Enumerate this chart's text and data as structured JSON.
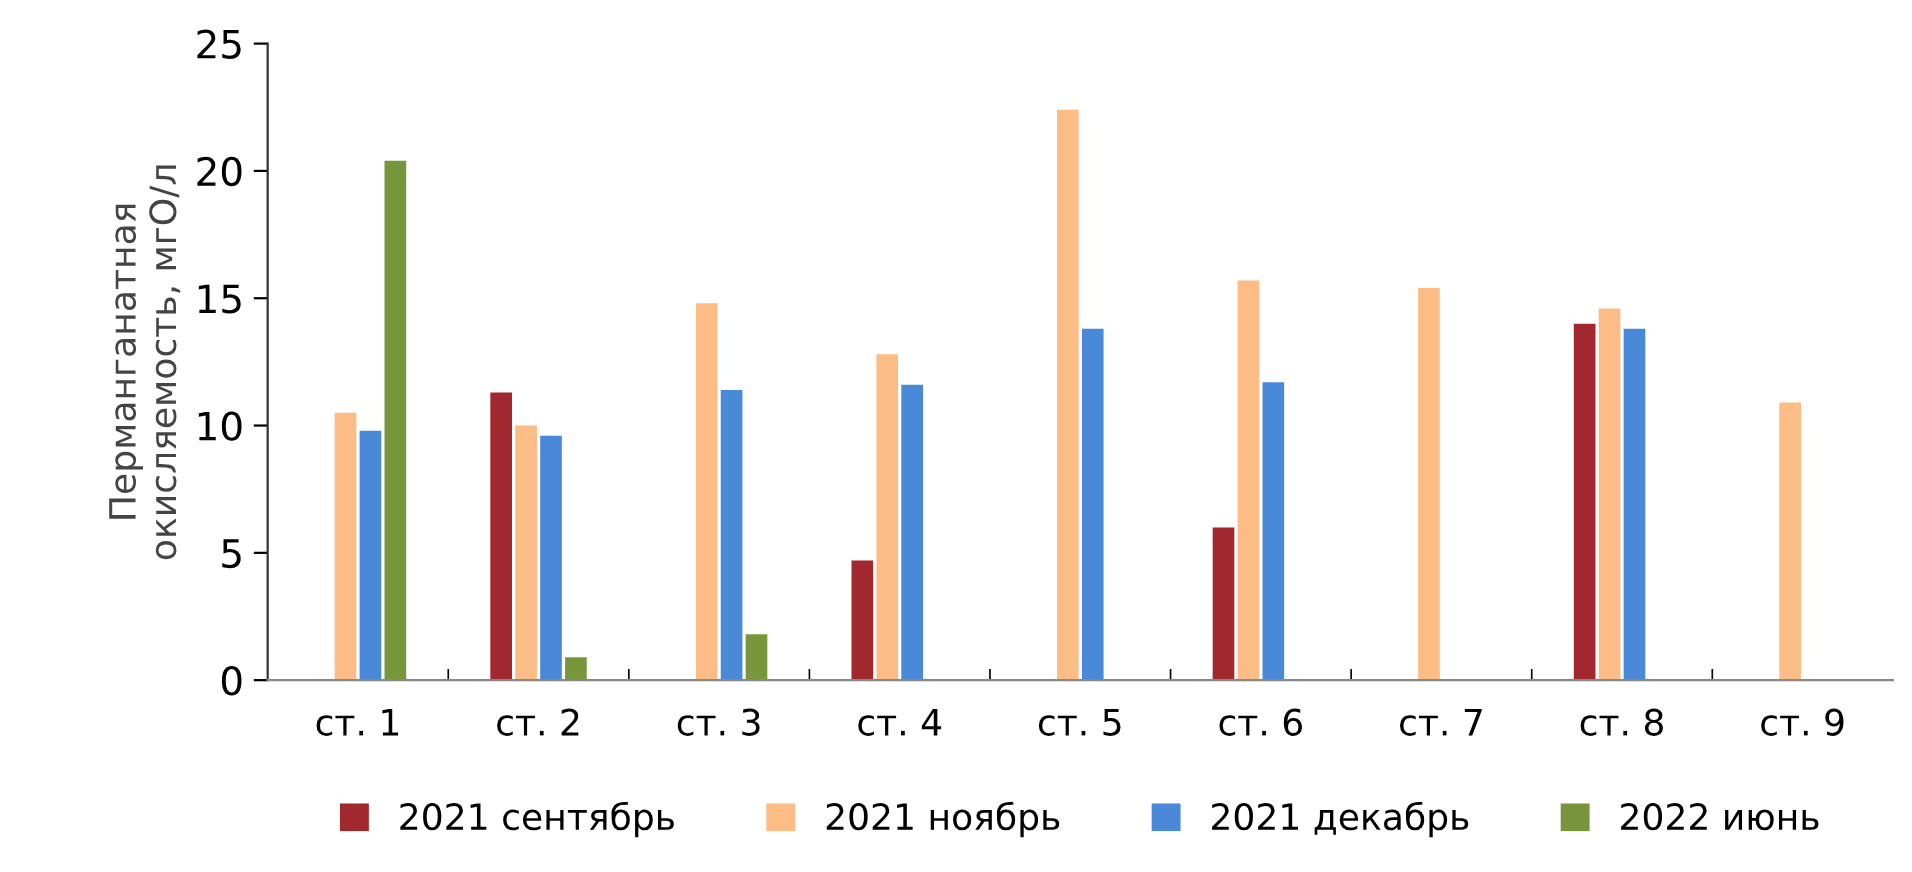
{
  "chart_data": {
    "type": "bar",
    "ylabel": "Перманганатная\nокисляемость, мгО/л",
    "categories": [
      "ст. 1",
      "ст. 2",
      "ст. 3",
      "ст. 4",
      "ст. 5",
      "ст. 6",
      "ст. 7",
      "ст. 8",
      "ст. 9"
    ],
    "series": [
      {
        "name": "2021 сентябрь",
        "color": "#a0282e",
        "values": [
          null,
          11.3,
          null,
          4.7,
          null,
          6.0,
          null,
          14.0,
          null
        ]
      },
      {
        "name": "2021 ноябрь",
        "color": "#fbbc86",
        "values": [
          10.5,
          10.0,
          14.8,
          12.8,
          22.4,
          15.7,
          15.4,
          14.6,
          10.9
        ]
      },
      {
        "name": "2021 декабрь",
        "color": "#4a88d8",
        "values": [
          9.8,
          9.6,
          11.4,
          11.6,
          13.8,
          11.7,
          null,
          13.8,
          null
        ]
      },
      {
        "name": "2022 июнь",
        "color": "#77953a",
        "values": [
          20.4,
          0.9,
          1.8,
          null,
          null,
          null,
          null,
          null,
          null
        ]
      }
    ],
    "ylim": [
      0,
      25
    ],
    "yticks": [
      0,
      5,
      10,
      15,
      20,
      25
    ],
    "grid": false,
    "legend": "bottom"
  }
}
